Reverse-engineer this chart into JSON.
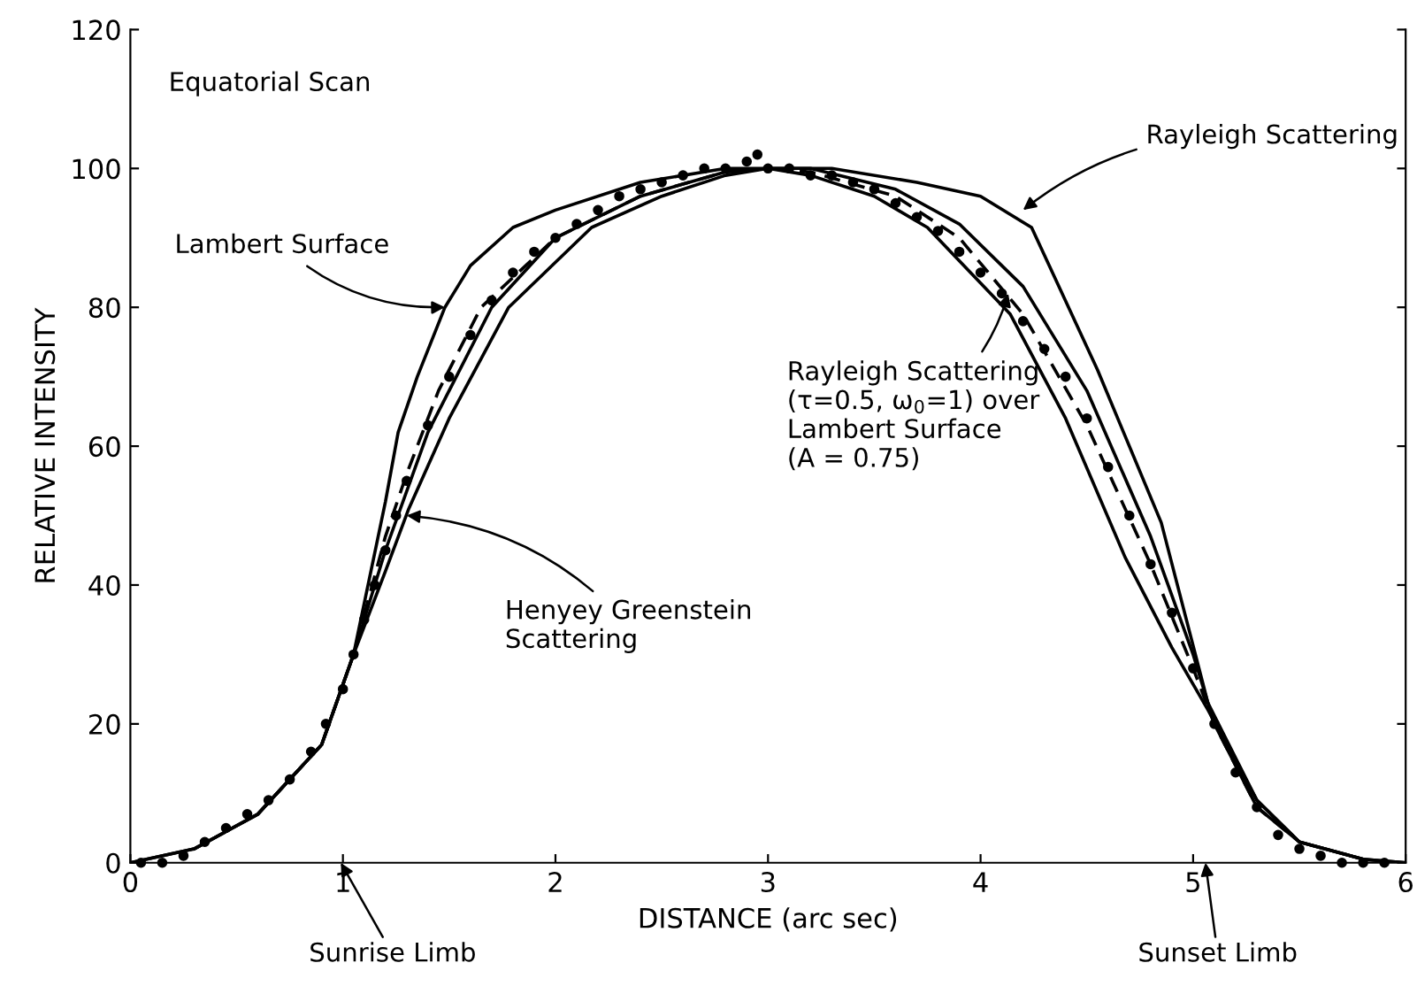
{
  "chart_data": {
    "type": "line",
    "xlabel": "DISTANCE (arc sec)",
    "ylabel": "RELATIVE INTENSITY",
    "xlim": [
      0,
      6
    ],
    "ylim": [
      0,
      120
    ],
    "xticks": [
      0,
      1,
      2,
      3,
      4,
      5,
      6
    ],
    "yticks": [
      0,
      20,
      40,
      60,
      80,
      100,
      120
    ],
    "grid": false,
    "legend": false,
    "series": [
      {
        "type": "scatter",
        "marker": "circle",
        "color": "#000000",
        "x": [
          0.05,
          0.15,
          0.25,
          0.35,
          0.45,
          0.55,
          0.65,
          0.75,
          0.85,
          0.92,
          1.0,
          1.05,
          1.1,
          1.15,
          1.2,
          1.25,
          1.3,
          1.4,
          1.5,
          1.6,
          1.7,
          1.8,
          1.9,
          2.0,
          2.1,
          2.2,
          2.3,
          2.4,
          2.5,
          2.6,
          2.7,
          2.8,
          2.9,
          2.95,
          3.0,
          3.1,
          3.2,
          3.3,
          3.4,
          3.5,
          3.6,
          3.7,
          3.8,
          3.9,
          4.0,
          4.1,
          4.2,
          4.3,
          4.4,
          4.5,
          4.6,
          4.7,
          4.8,
          4.9,
          5.0,
          5.1,
          5.2,
          5.3,
          5.4,
          5.5,
          5.6,
          5.7,
          5.8,
          5.9
        ],
        "values": [
          0,
          0,
          1,
          3,
          5,
          7,
          9,
          12,
          16,
          20,
          25,
          30,
          35,
          40,
          45,
          50,
          55,
          63,
          70,
          76,
          81,
          85,
          88,
          90,
          92,
          94,
          96,
          97,
          98,
          99,
          100,
          100,
          101,
          102,
          100,
          100,
          99,
          99,
          98,
          97,
          95,
          93,
          91,
          88,
          85,
          82,
          78,
          74,
          70,
          64,
          57,
          50,
          43,
          36,
          28,
          20,
          13,
          8,
          4,
          2,
          1,
          0,
          0,
          0
        ]
      },
      {
        "line_style": "solid",
        "color": "#000000",
        "x": [
          0,
          0.3,
          0.6,
          0.9,
          1.05,
          1.2,
          1.26,
          1.35,
          1.48,
          1.6,
          1.8,
          2.0,
          2.4,
          2.8,
          3.0,
          3.2,
          3.6,
          3.9,
          4.2,
          4.5,
          4.8,
          5.0,
          5.1,
          5.3,
          5.5,
          5.8
        ],
        "values": [
          0,
          2,
          7,
          17,
          30,
          52,
          62,
          70,
          80,
          86,
          91.5,
          94,
          98,
          100,
          100,
          100,
          97,
          92,
          83,
          68,
          47,
          30,
          20,
          8,
          3,
          0.5
        ]
      },
      {
        "line_style": "solid",
        "color": "#000000",
        "x": [
          0.3,
          0.6,
          0.9,
          1.05,
          1.2,
          1.31,
          1.5,
          1.78,
          2.17,
          2.5,
          2.8,
          3.0,
          3.2,
          3.5,
          3.75,
          4.14,
          4.4,
          4.68,
          4.9,
          5.07,
          5.3,
          5.5,
          5.8,
          6.0
        ],
        "values": [
          2,
          7,
          17,
          30,
          42,
          51,
          64,
          80,
          91.5,
          96,
          99,
          100,
          99,
          96,
          91.5,
          79,
          64,
          44,
          31,
          22,
          9,
          3,
          0.5,
          0
        ]
      },
      {
        "line_style": "solid",
        "color": "#000000",
        "x": [
          0,
          0.3,
          0.6,
          0.9,
          1.05,
          1.2,
          1.4,
          1.7,
          2.0,
          2.4,
          2.8,
          3.0,
          3.3,
          3.7,
          4.0,
          4.24,
          4.55,
          4.85,
          5.07,
          5.3,
          5.5,
          5.8,
          6.0
        ],
        "values": [
          0,
          2,
          7,
          17,
          30,
          45,
          62,
          80,
          90,
          96,
          99.5,
          100,
          100,
          98,
          96,
          91.5,
          71,
          49,
          23,
          9,
          3,
          0.5,
          0
        ]
      },
      {
        "line_style": "dashed",
        "color": "#000000",
        "x": [
          0.6,
          0.9,
          1.05,
          1.2,
          1.3,
          1.45,
          1.65,
          2.0,
          2.4,
          2.8,
          3.0,
          3.2,
          3.6,
          3.9,
          4.2,
          4.5,
          4.8,
          5.0,
          5.1,
          5.3,
          5.5
        ],
        "values": [
          7,
          17,
          30,
          47,
          56,
          68,
          80,
          90,
          96,
          99.5,
          100,
          99.5,
          96,
          90,
          79,
          63,
          43,
          28,
          20,
          8,
          3
        ]
      }
    ],
    "annotations": [
      {
        "text": "Equatorial Scan"
      },
      {
        "text": "Lambert Surface",
        "x": 1.48,
        "y": 80
      },
      {
        "text": "Henyey Greenstein\nScattering",
        "x": 1.3,
        "y": 50
      },
      {
        "text": "Rayleigh Scattering",
        "x": 4.2,
        "y": 94
      },
      {
        "text": "Rayleigh Scattering\n(τ=0.5, ω$_{0}$=1) over\nLambert Surface\n(A = 0.75)",
        "x": 4.13,
        "y": 82
      },
      "Sunrise Limb",
      "Sunset Limb"
    ]
  }
}
